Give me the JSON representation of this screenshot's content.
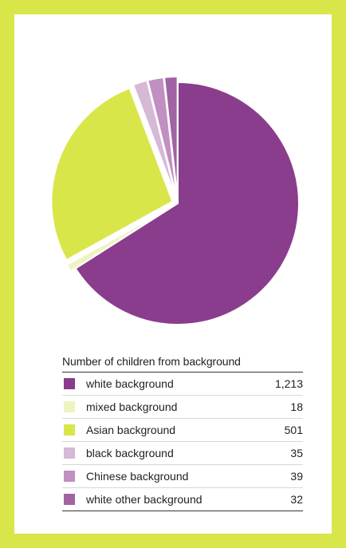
{
  "chart_data": {
    "type": "pie",
    "title": "Number of children from background",
    "slices": [
      {
        "label": "white background",
        "value": 1213,
        "display": "1,213",
        "color": "#8a3d8c"
      },
      {
        "label": "mixed background",
        "value": 18,
        "display": "18",
        "color": "#f0f3c0"
      },
      {
        "label": "Asian background",
        "value": 501,
        "display": "501",
        "color": "#d9e64a"
      },
      {
        "label": "black background",
        "value": 35,
        "display": "35",
        "color": "#d6b8d7"
      },
      {
        "label": "Chinese background",
        "value": 39,
        "display": "39",
        "color": "#c18fc2"
      },
      {
        "label": "white other background",
        "value": 32,
        "display": "32",
        "color": "#a163a3"
      }
    ],
    "start_angle_deg": 0,
    "direction": "clockwise",
    "exploded_slices": [
      "mixed background",
      "Asian background",
      "black background",
      "Chinese background",
      "white other background"
    ],
    "legend_placement": "below"
  },
  "colors": {
    "page_background": "#d9e64a",
    "card_background": "#ffffff"
  }
}
